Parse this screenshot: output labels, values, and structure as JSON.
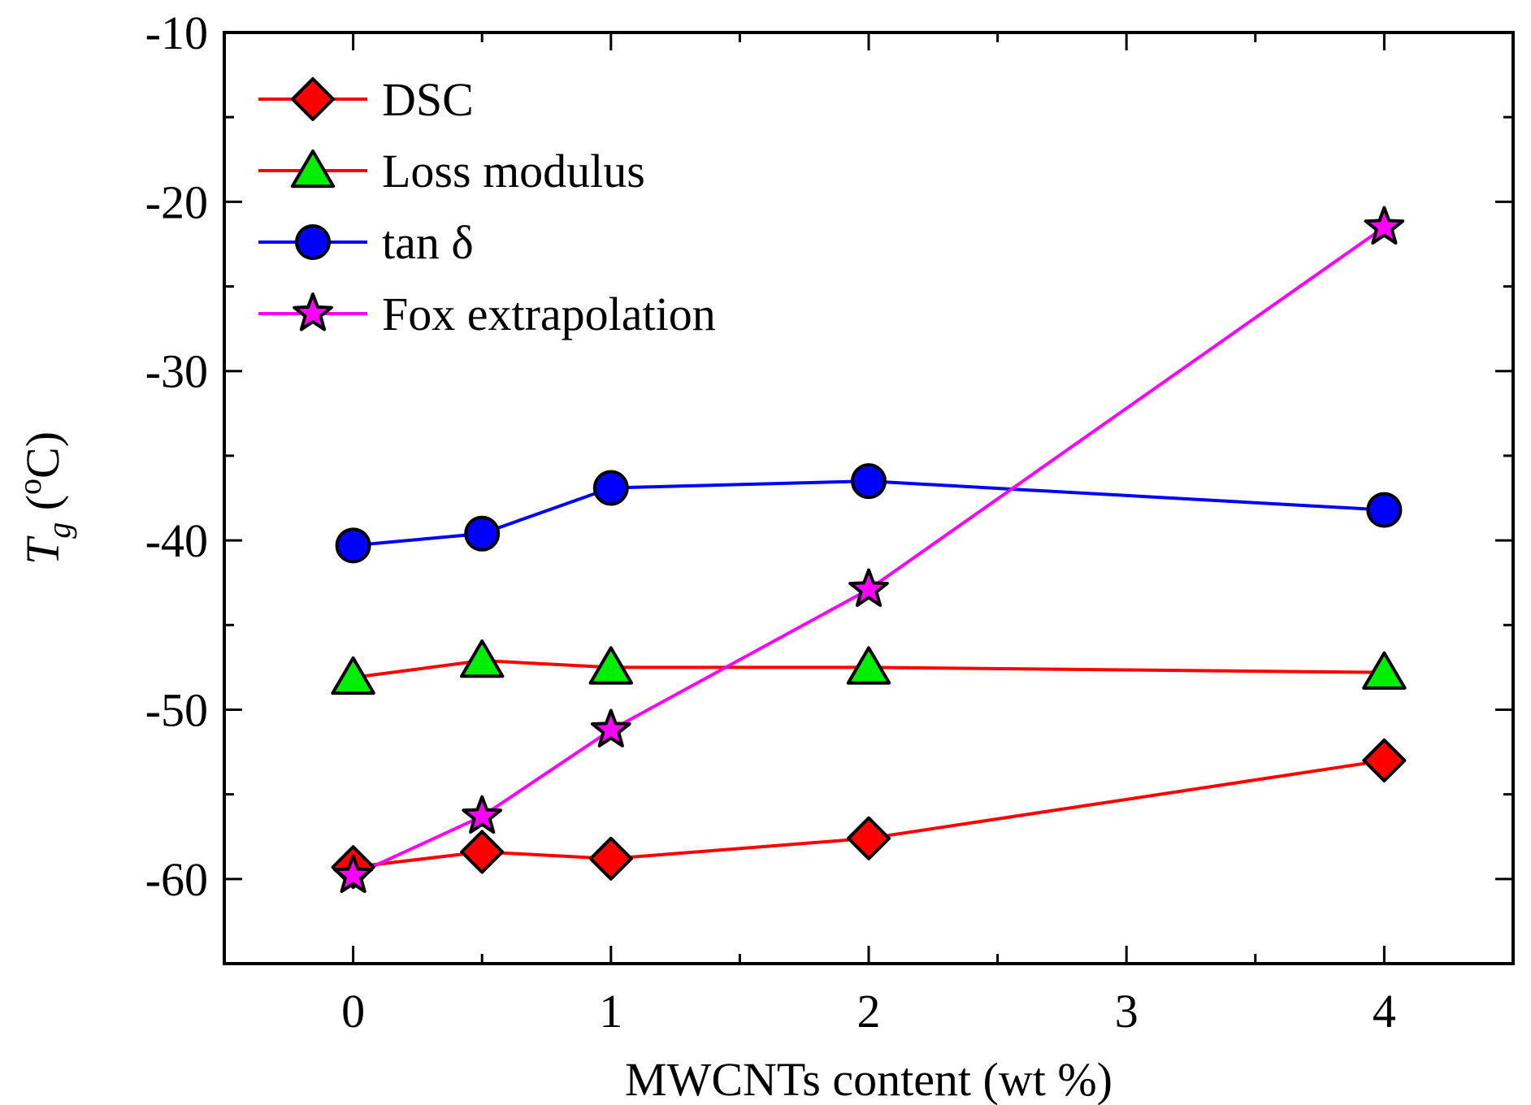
{
  "chart_data": {
    "type": "line",
    "xlabel": "MWCNTs content (wt %)",
    "ylabel": {
      "main": "T",
      "sub": "g",
      "open": " (",
      "sup": "o",
      "unit": "C)"
    },
    "xlim": [
      -0.5,
      4.5
    ],
    "ylim": [
      -65,
      -10
    ],
    "xticks": [
      0,
      1,
      2,
      3,
      4
    ],
    "xtick_labels": [
      "0",
      "1",
      "2",
      "3",
      "4"
    ],
    "yticks": [
      -60,
      -50,
      -40,
      -30,
      -20,
      -10
    ],
    "ytick_labels": [
      "-60",
      "-50",
      "-40",
      "-30",
      "-20",
      "-10"
    ],
    "x": [
      0,
      0.5,
      1,
      2,
      4
    ],
    "legend_position": "top-left",
    "series": [
      {
        "name": "DSC",
        "marker": "diamond",
        "line_color": "#ff0000",
        "marker_color": "#ff0000",
        "values": [
          -59.3,
          -58.4,
          -58.8,
          -57.6,
          -53.0
        ]
      },
      {
        "name": "Loss modulus",
        "marker": "triangle",
        "line_color": "#ff0000",
        "marker_color": "#00ee00",
        "values": [
          -48.1,
          -47.1,
          -47.5,
          -47.5,
          -47.8
        ]
      },
      {
        "name": "tan δ",
        "marker": "circle",
        "line_color": "#0000ff",
        "marker_color": "#0000ff",
        "values": [
          -40.3,
          -39.6,
          -36.9,
          -36.5,
          -38.2
        ]
      },
      {
        "name": "Fox extrapolation",
        "marker": "star",
        "line_color": "#ff00ff",
        "marker_color": "#ff00ff",
        "values": [
          -59.8,
          -56.3,
          -51.2,
          -42.9,
          -21.5
        ]
      }
    ]
  }
}
